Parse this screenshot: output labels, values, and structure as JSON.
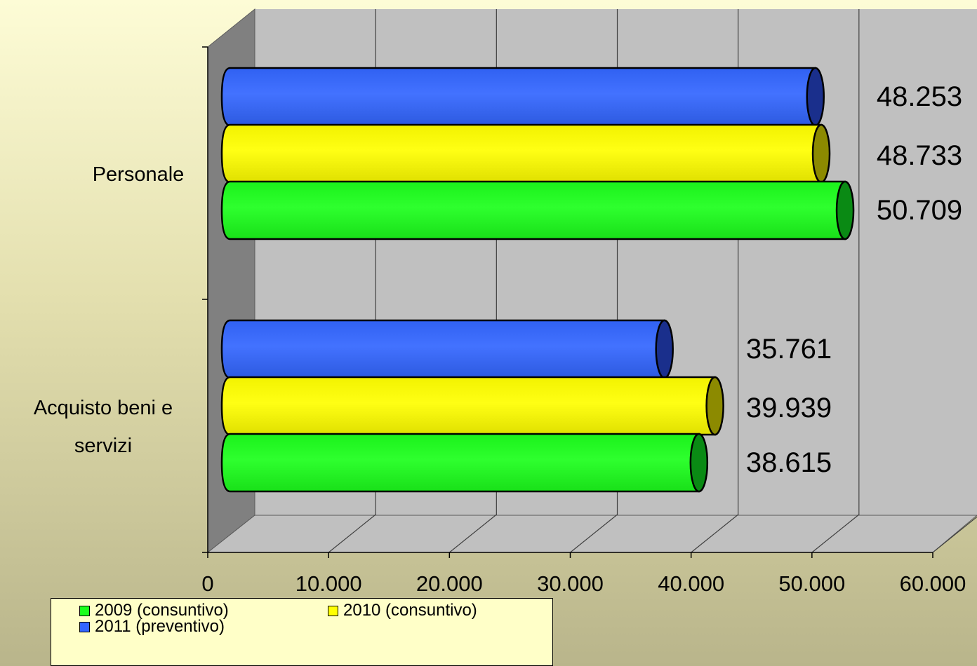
{
  "chart_data": {
    "type": "bar",
    "orientation": "horizontal",
    "style": "3d-cylinder",
    "categories": [
      "Personale",
      "Acquisto beni e servizi"
    ],
    "category_label_lines": [
      [
        "Personale"
      ],
      [
        "Acquisto beni e",
        "servizi"
      ]
    ],
    "series": [
      {
        "name": "2009 (consuntivo)",
        "values": [
          50709,
          38615
        ],
        "labels": [
          "50.709",
          "38.615"
        ],
        "color": "#1cff1c",
        "dark": "#0a8a14"
      },
      {
        "name": "2010 (consuntivo)",
        "values": [
          48733,
          39939
        ],
        "labels": [
          "48.733",
          "39.939"
        ],
        "color": "#ffff00",
        "dark": "#8c8a00"
      },
      {
        "name": "2011 (preventivo)",
        "values": [
          48253,
          35761
        ],
        "labels": [
          "48.253",
          "35.761"
        ],
        "color": "#3366ff",
        "dark": "#1a2f8c"
      }
    ],
    "xlim": [
      0,
      60000
    ],
    "x_ticks": [
      {
        "value": 0,
        "label": "0"
      },
      {
        "value": 10000,
        "label": "10.000"
      },
      {
        "value": 20000,
        "label": "20.000"
      },
      {
        "value": 30000,
        "label": "30.000"
      },
      {
        "value": 40000,
        "label": "40.000"
      },
      {
        "value": 50000,
        "label": "50.000"
      },
      {
        "value": 60000,
        "label": "60.000"
      }
    ],
    "grid": true,
    "legend_position": "bottom-left",
    "title": "",
    "xlabel": "",
    "ylabel": ""
  }
}
